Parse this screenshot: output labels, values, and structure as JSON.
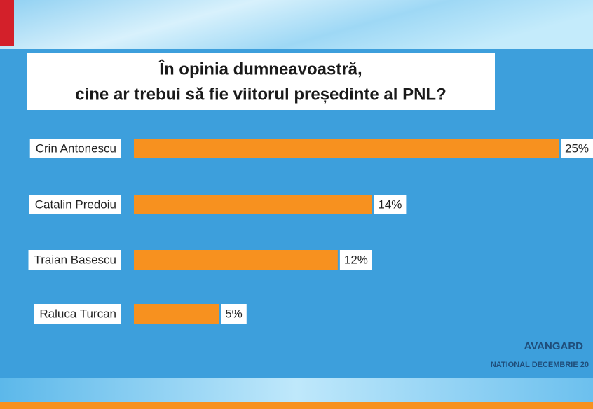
{
  "chart_data": {
    "type": "bar",
    "orientation": "horizontal",
    "title": [
      "În opinia dumneavoastră,",
      "cine ar trebui să fie viitorul președinte al PNL?"
    ],
    "categories": [
      "Crin Antonescu",
      "Catalin Predoiu",
      "Traian Basescu",
      "Raluca Turcan"
    ],
    "values": [
      25,
      14,
      12,
      5
    ],
    "value_labels": [
      "25%",
      "14%",
      "12%",
      "5%"
    ],
    "color": "#f7911f",
    "xlim": [
      0,
      25
    ],
    "source": "AVANGARD",
    "source_note": "NATIONAL DECEMBRIE 20"
  }
}
